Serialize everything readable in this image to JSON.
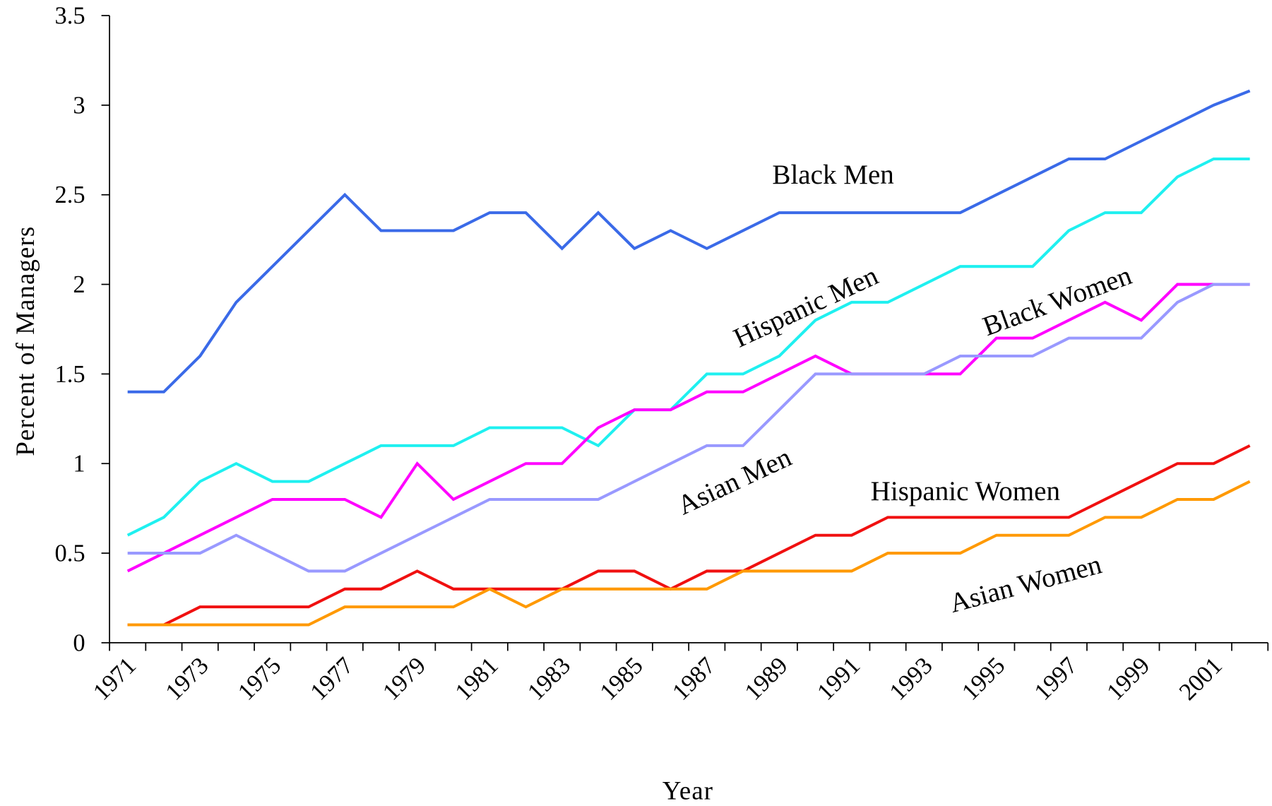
{
  "chart_data": {
    "type": "line",
    "x_label": "Year",
    "y_label": "Percent of Managers",
    "categories": [
      "1971",
      null,
      "1973",
      null,
      "1975",
      null,
      "1977",
      null,
      "1979",
      null,
      "1981",
      null,
      "1983",
      null,
      "1985",
      null,
      "1987",
      null,
      "1989",
      null,
      "1991",
      null,
      "1993",
      null,
      "1995",
      null,
      "1997",
      null,
      "1999",
      null,
      "2001",
      null
    ],
    "ylim": [
      0,
      3.5
    ],
    "yticks": [
      0,
      0.5,
      1,
      1.5,
      2,
      2.5,
      3,
      3.5
    ],
    "series": [
      {
        "name": "Black Men",
        "color": "#3a6ae8",
        "values": [
          1.4,
          1.4,
          1.6,
          1.9,
          2.1,
          2.3,
          2.5,
          2.3,
          2.3,
          2.3,
          2.4,
          2.4,
          2.2,
          2.4,
          2.2,
          2.3,
          2.2,
          2.3,
          2.4,
          2.4,
          2.4,
          2.4,
          2.4,
          2.4,
          2.5,
          2.6,
          2.7,
          2.7,
          2.8,
          2.9,
          3.0,
          3.08
        ]
      },
      {
        "name": "Hispanic Men",
        "color": "#1ff0f0",
        "values": [
          0.6,
          0.7,
          0.9,
          1.0,
          0.9,
          0.9,
          1.0,
          1.1,
          1.1,
          1.1,
          1.2,
          1.2,
          1.2,
          1.1,
          1.3,
          1.3,
          1.5,
          1.5,
          1.6,
          1.8,
          1.9,
          1.9,
          2.0,
          2.1,
          2.1,
          2.1,
          2.3,
          2.4,
          2.4,
          2.6,
          2.7,
          2.7
        ]
      },
      {
        "name": "Black Women",
        "color": "#ff00ff",
        "values": [
          0.4,
          0.5,
          0.6,
          0.7,
          0.8,
          0.8,
          0.8,
          0.7,
          1.0,
          0.8,
          0.9,
          1.0,
          1.0,
          1.2,
          1.3,
          1.3,
          1.4,
          1.4,
          1.5,
          1.6,
          1.5,
          1.5,
          1.5,
          1.5,
          1.7,
          1.7,
          1.8,
          1.9,
          1.8,
          2.0,
          2.0,
          2.0
        ]
      },
      {
        "name": "Asian Men",
        "color": "#9999ff",
        "values": [
          0.5,
          0.5,
          0.5,
          0.6,
          0.5,
          0.4,
          0.4,
          0.5,
          0.6,
          0.7,
          0.8,
          0.8,
          0.8,
          0.8,
          0.9,
          1.0,
          1.1,
          1.1,
          1.3,
          1.5,
          1.5,
          1.5,
          1.5,
          1.6,
          1.6,
          1.6,
          1.7,
          1.7,
          1.7,
          1.9,
          2.0,
          2.0
        ]
      },
      {
        "name": "Hispanic Women",
        "color": "#f01010",
        "values": [
          0.1,
          0.1,
          0.2,
          0.2,
          0.2,
          0.2,
          0.3,
          0.3,
          0.4,
          0.3,
          0.3,
          0.3,
          0.3,
          0.4,
          0.4,
          0.3,
          0.4,
          0.4,
          0.5,
          0.6,
          0.6,
          0.7,
          0.7,
          0.7,
          0.7,
          0.7,
          0.7,
          0.8,
          0.9,
          1.0,
          1.0,
          1.1
        ]
      },
      {
        "name": "Asian Women",
        "color": "#ff9900",
        "values": [
          0.1,
          0.1,
          0.1,
          0.1,
          0.1,
          0.1,
          0.2,
          0.2,
          0.2,
          0.2,
          0.3,
          0.2,
          0.3,
          0.3,
          0.3,
          0.3,
          0.3,
          0.4,
          0.4,
          0.4,
          0.4,
          0.5,
          0.5,
          0.5,
          0.6,
          0.6,
          0.6,
          0.7,
          0.7,
          0.8,
          0.8,
          0.9
        ]
      }
    ]
  }
}
